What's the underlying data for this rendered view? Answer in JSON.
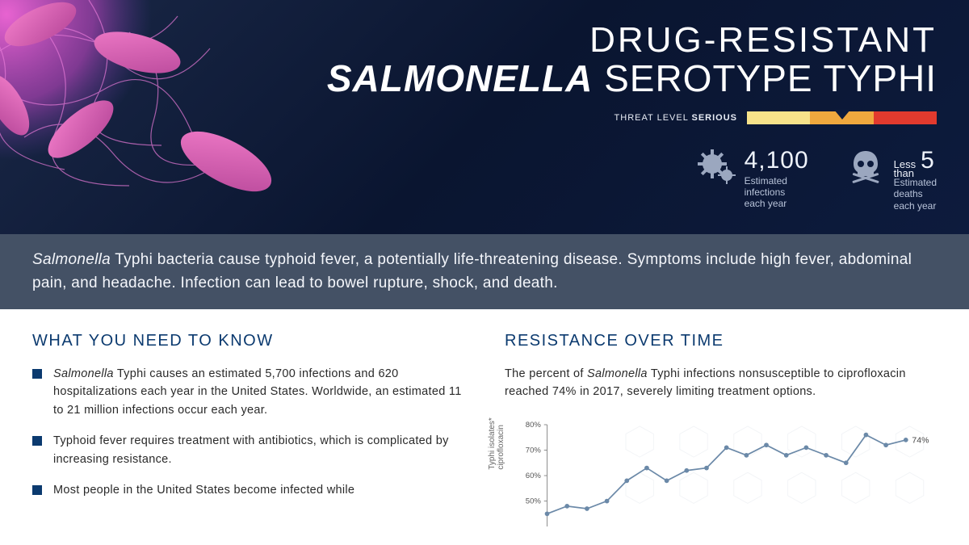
{
  "hero": {
    "title_line1": "DRUG-RESISTANT",
    "title_line2_italic": "SALMONELLA",
    "title_line2_rest": " SEROTYPE TYPHI",
    "threat_label_prefix": "THREAT LEVEL ",
    "threat_label_bold": "SERIOUS",
    "threat_colors": [
      "#f7e28a",
      "#f0a83e",
      "#e23a2e"
    ],
    "bg_gradient": [
      "#1a2847",
      "#0a1530",
      "#0d1b3d"
    ]
  },
  "stats": [
    {
      "icon": "gear",
      "prefix": "",
      "number": "4,100",
      "sub1": "Estimated",
      "sub2": "infections",
      "sub3": "each year",
      "icon_color": "#9ba7bf"
    },
    {
      "icon": "skull",
      "prefix": "Less than",
      "number": "5",
      "sub1": "Estimated",
      "sub2": "deaths",
      "sub3": "each year",
      "icon_color": "#9ba7bf"
    }
  ],
  "description": {
    "italic_lead": "Salmonella",
    "body": " Typhi bacteria cause typhoid fever, a potentially life-threatening disease. Symptoms include high fever, abdominal pain, and headache. Infection can lead to bowel rupture, shock, and death.",
    "bg_color": "#445165",
    "text_color": "#f4f6fb"
  },
  "left_col": {
    "heading": "WHAT YOU NEED TO KNOW",
    "heading_color": "#0b3a6f",
    "bullets": [
      {
        "italic": "Salmonella",
        "rest": " Typhi causes an estimated 5,700 infections and 620 hospitalizations each year in the United States. Worldwide, an estimated 11 to 21 million infections occur each year."
      },
      {
        "italic": "",
        "rest": "Typhoid fever requires treatment with antibiotics, which is complicated by increasing resistance."
      },
      {
        "italic": "",
        "rest": "Most people in the United States become infected while"
      }
    ],
    "bullet_marker_color": "#0b3a6f"
  },
  "right_col": {
    "heading": "RESISTANCE OVER TIME",
    "heading_color": "#0b3a6f",
    "intro_pre": "The percent of ",
    "intro_italic": "Salmonella",
    "intro_post": " Typhi infections nonsusceptible to ciprofloxacin reached 74% in 2017, severely limiting treatment options."
  },
  "chart": {
    "type": "line",
    "y_label": "Typhi isolates*\nciprofloxacin",
    "ylim": [
      40,
      80
    ],
    "yticks": [
      50,
      60,
      70,
      80
    ],
    "ytick_labels": [
      "50%",
      "60%",
      "70%",
      "80%"
    ],
    "values": [
      45,
      48,
      47,
      50,
      58,
      63,
      58,
      62,
      63,
      71,
      68,
      72,
      68,
      71,
      68,
      65,
      76,
      72,
      74
    ],
    "final_label": "74%",
    "line_color": "#6b89a8",
    "marker_color": "#6b89a8",
    "marker_size": 3,
    "line_width": 1.8,
    "grid_color": "#dddddd",
    "axis_color": "#888888",
    "tick_font_size": 10,
    "background_color": "#ffffff",
    "hex_overlay_color": "#f1f3f6"
  }
}
